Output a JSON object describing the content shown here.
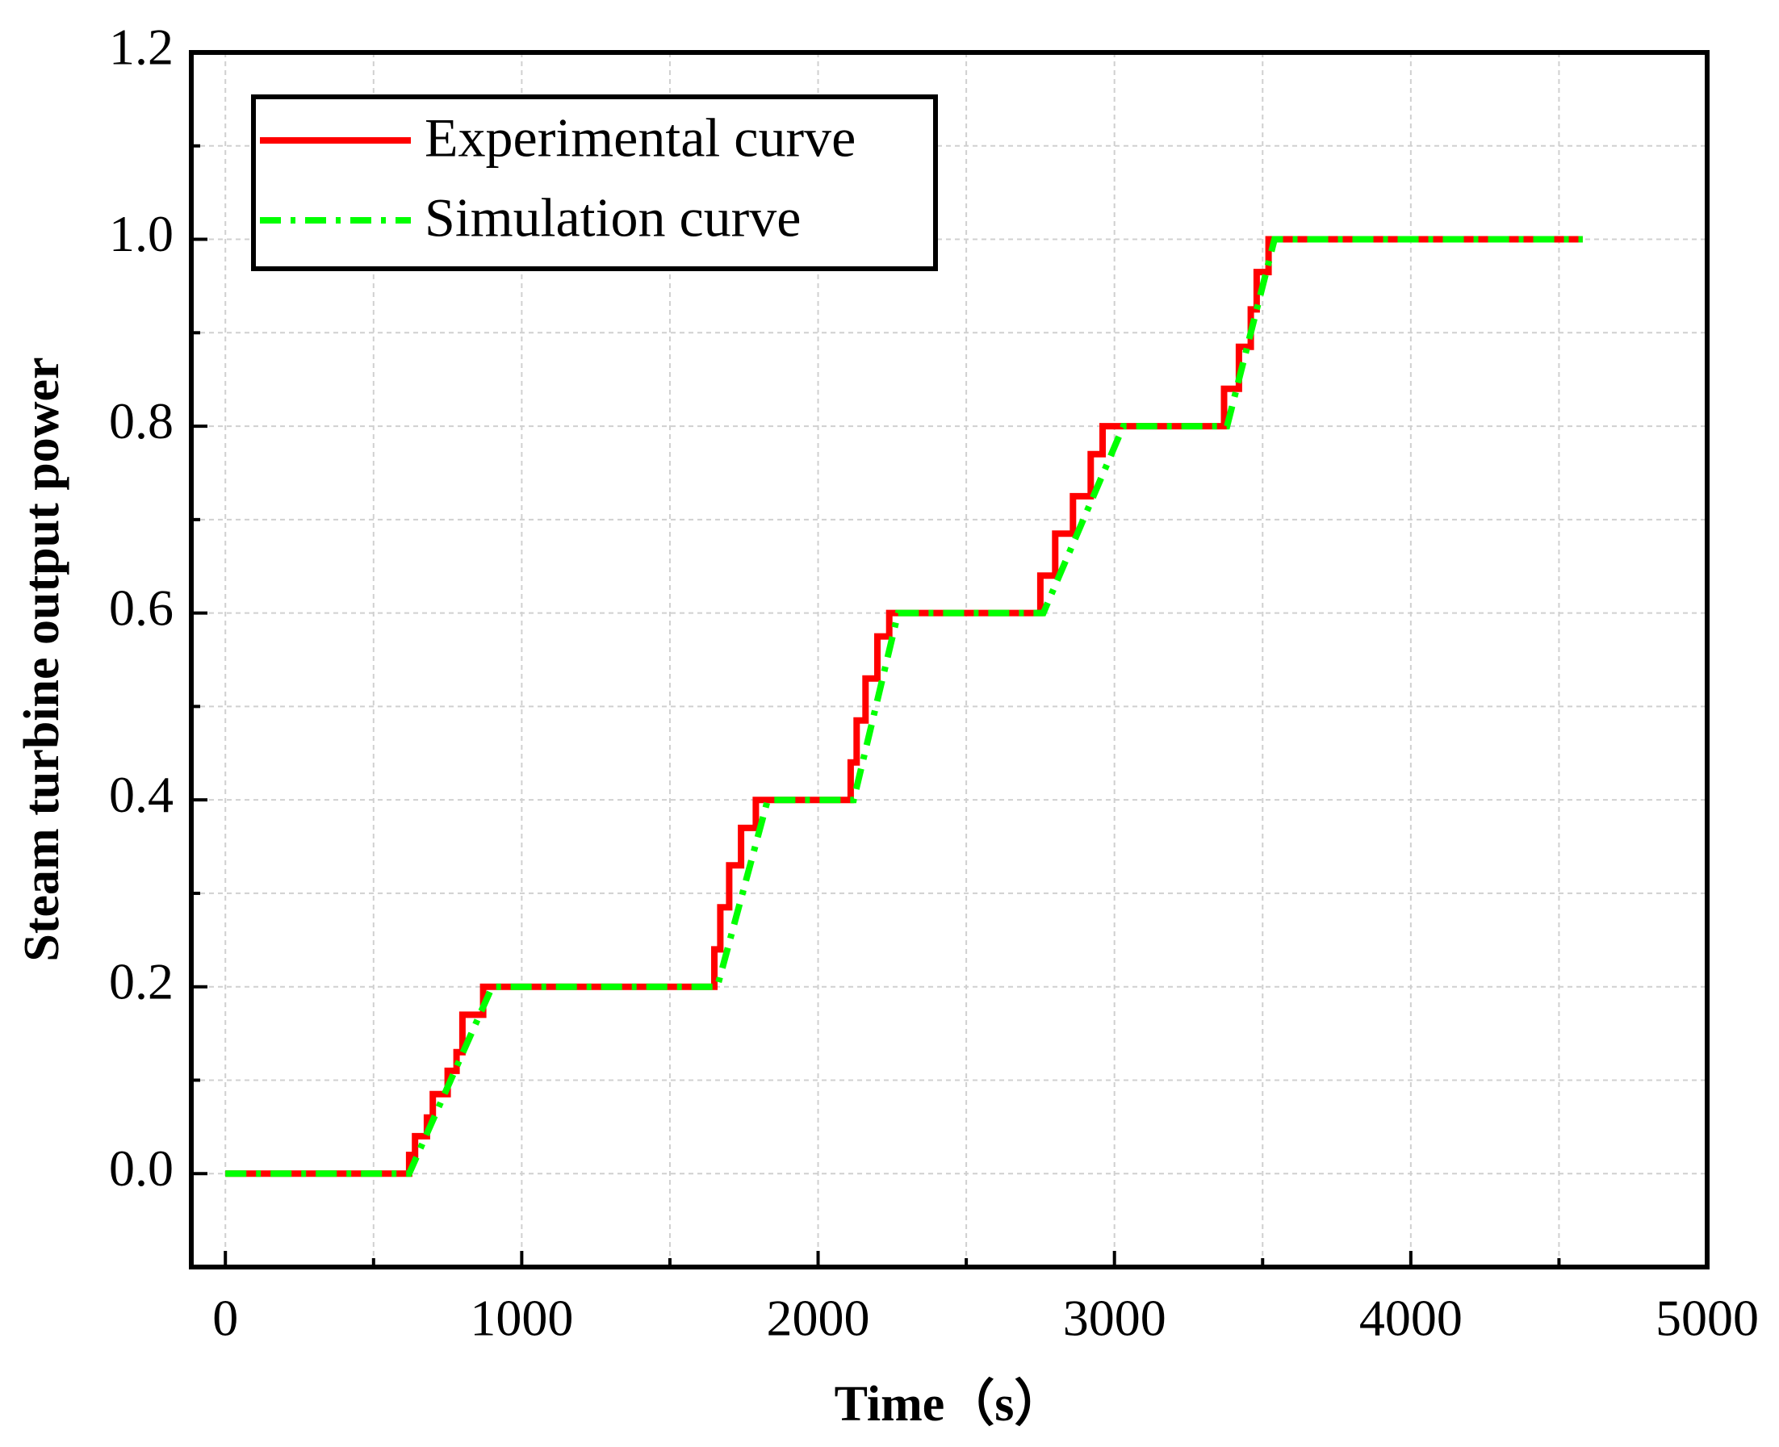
{
  "chart_data": {
    "type": "line",
    "x_label": "Time（s）",
    "y_label": "Steam turbine output power",
    "xlim": [
      -115,
      5000
    ],
    "ylim": [
      -0.1,
      1.2
    ],
    "xticks": [
      0,
      1000,
      2000,
      3000,
      4000,
      5000
    ],
    "xminorticks": [
      500,
      1500,
      2500,
      3500,
      4500
    ],
    "yticks": [
      {
        "value": 0,
        "label": "0.0"
      },
      0.2,
      0.4,
      0.6,
      0.8,
      {
        "value": 1,
        "label": "1.0"
      },
      1.2
    ],
    "yminorticks": [
      0.1,
      0.3,
      0.5,
      0.7,
      0.9,
      1.1
    ],
    "grid": true,
    "legend": "upper left",
    "series": [
      {
        "name": "Experimental curve",
        "color": "#ff0000",
        "style": "solid",
        "x": [
          0,
          620,
          620,
          640,
          640,
          680,
          680,
          700,
          700,
          750,
          750,
          780,
          780,
          800,
          800,
          870,
          870,
          1650,
          1650,
          1670,
          1670,
          1700,
          1700,
          1740,
          1740,
          1790,
          1790,
          2110,
          2110,
          2130,
          2130,
          2160,
          2160,
          2200,
          2200,
          2240,
          2240,
          2750,
          2750,
          2800,
          2800,
          2860,
          2860,
          2920,
          2920,
          2960,
          2960,
          3370,
          3370,
          3420,
          3420,
          3460,
          3460,
          3480,
          3480,
          3520,
          3520,
          4580
        ],
        "values": [
          0,
          0,
          0.02,
          0.02,
          0.04,
          0.04,
          0.06,
          0.06,
          0.085,
          0.085,
          0.11,
          0.11,
          0.13,
          0.13,
          0.17,
          0.17,
          0.2,
          0.2,
          0.24,
          0.24,
          0.285,
          0.285,
          0.33,
          0.33,
          0.37,
          0.37,
          0.4,
          0.4,
          0.44,
          0.44,
          0.485,
          0.485,
          0.53,
          0.53,
          0.575,
          0.575,
          0.6,
          0.6,
          0.64,
          0.64,
          0.685,
          0.685,
          0.725,
          0.725,
          0.77,
          0.77,
          0.8,
          0.8,
          0.84,
          0.84,
          0.885,
          0.885,
          0.925,
          0.925,
          0.965,
          0.965,
          1.0,
          1.0
        ]
      },
      {
        "name": "Simulation curve",
        "color": "#00ff00",
        "style": "dashdot",
        "x": [
          0,
          620,
          900,
          1660,
          1830,
          2120,
          2270,
          2760,
          3030,
          3380,
          3540,
          4580
        ],
        "values": [
          0,
          0,
          0.2,
          0.2,
          0.4,
          0.4,
          0.6,
          0.6,
          0.8,
          0.8,
          1.0,
          1.0
        ]
      }
    ]
  }
}
